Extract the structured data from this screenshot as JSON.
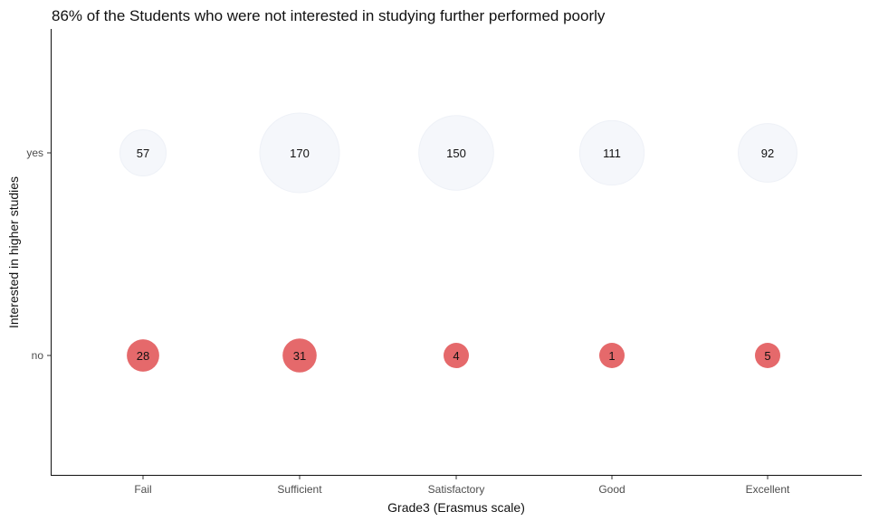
{
  "chart_data": {
    "type": "scatter",
    "title": "86% of the Students who were not interested in studying further performed poorly",
    "xlabel": "Grade3 (Erasmus scale)",
    "ylabel": "Interested in higher studies",
    "categories": [
      "Fail",
      "Sufficient",
      "Satisfactory",
      "Good",
      "Excellent"
    ],
    "y_categories": [
      "no",
      "yes"
    ],
    "series": [
      {
        "group": "yes",
        "color": "#f5f7fb",
        "values": [
          57,
          170,
          150,
          111,
          92
        ]
      },
      {
        "group": "no",
        "color": "#e5696b",
        "values": [
          28,
          31,
          4,
          1,
          5
        ]
      }
    ],
    "size_encoding": "count",
    "grid": false,
    "legend": "none"
  }
}
